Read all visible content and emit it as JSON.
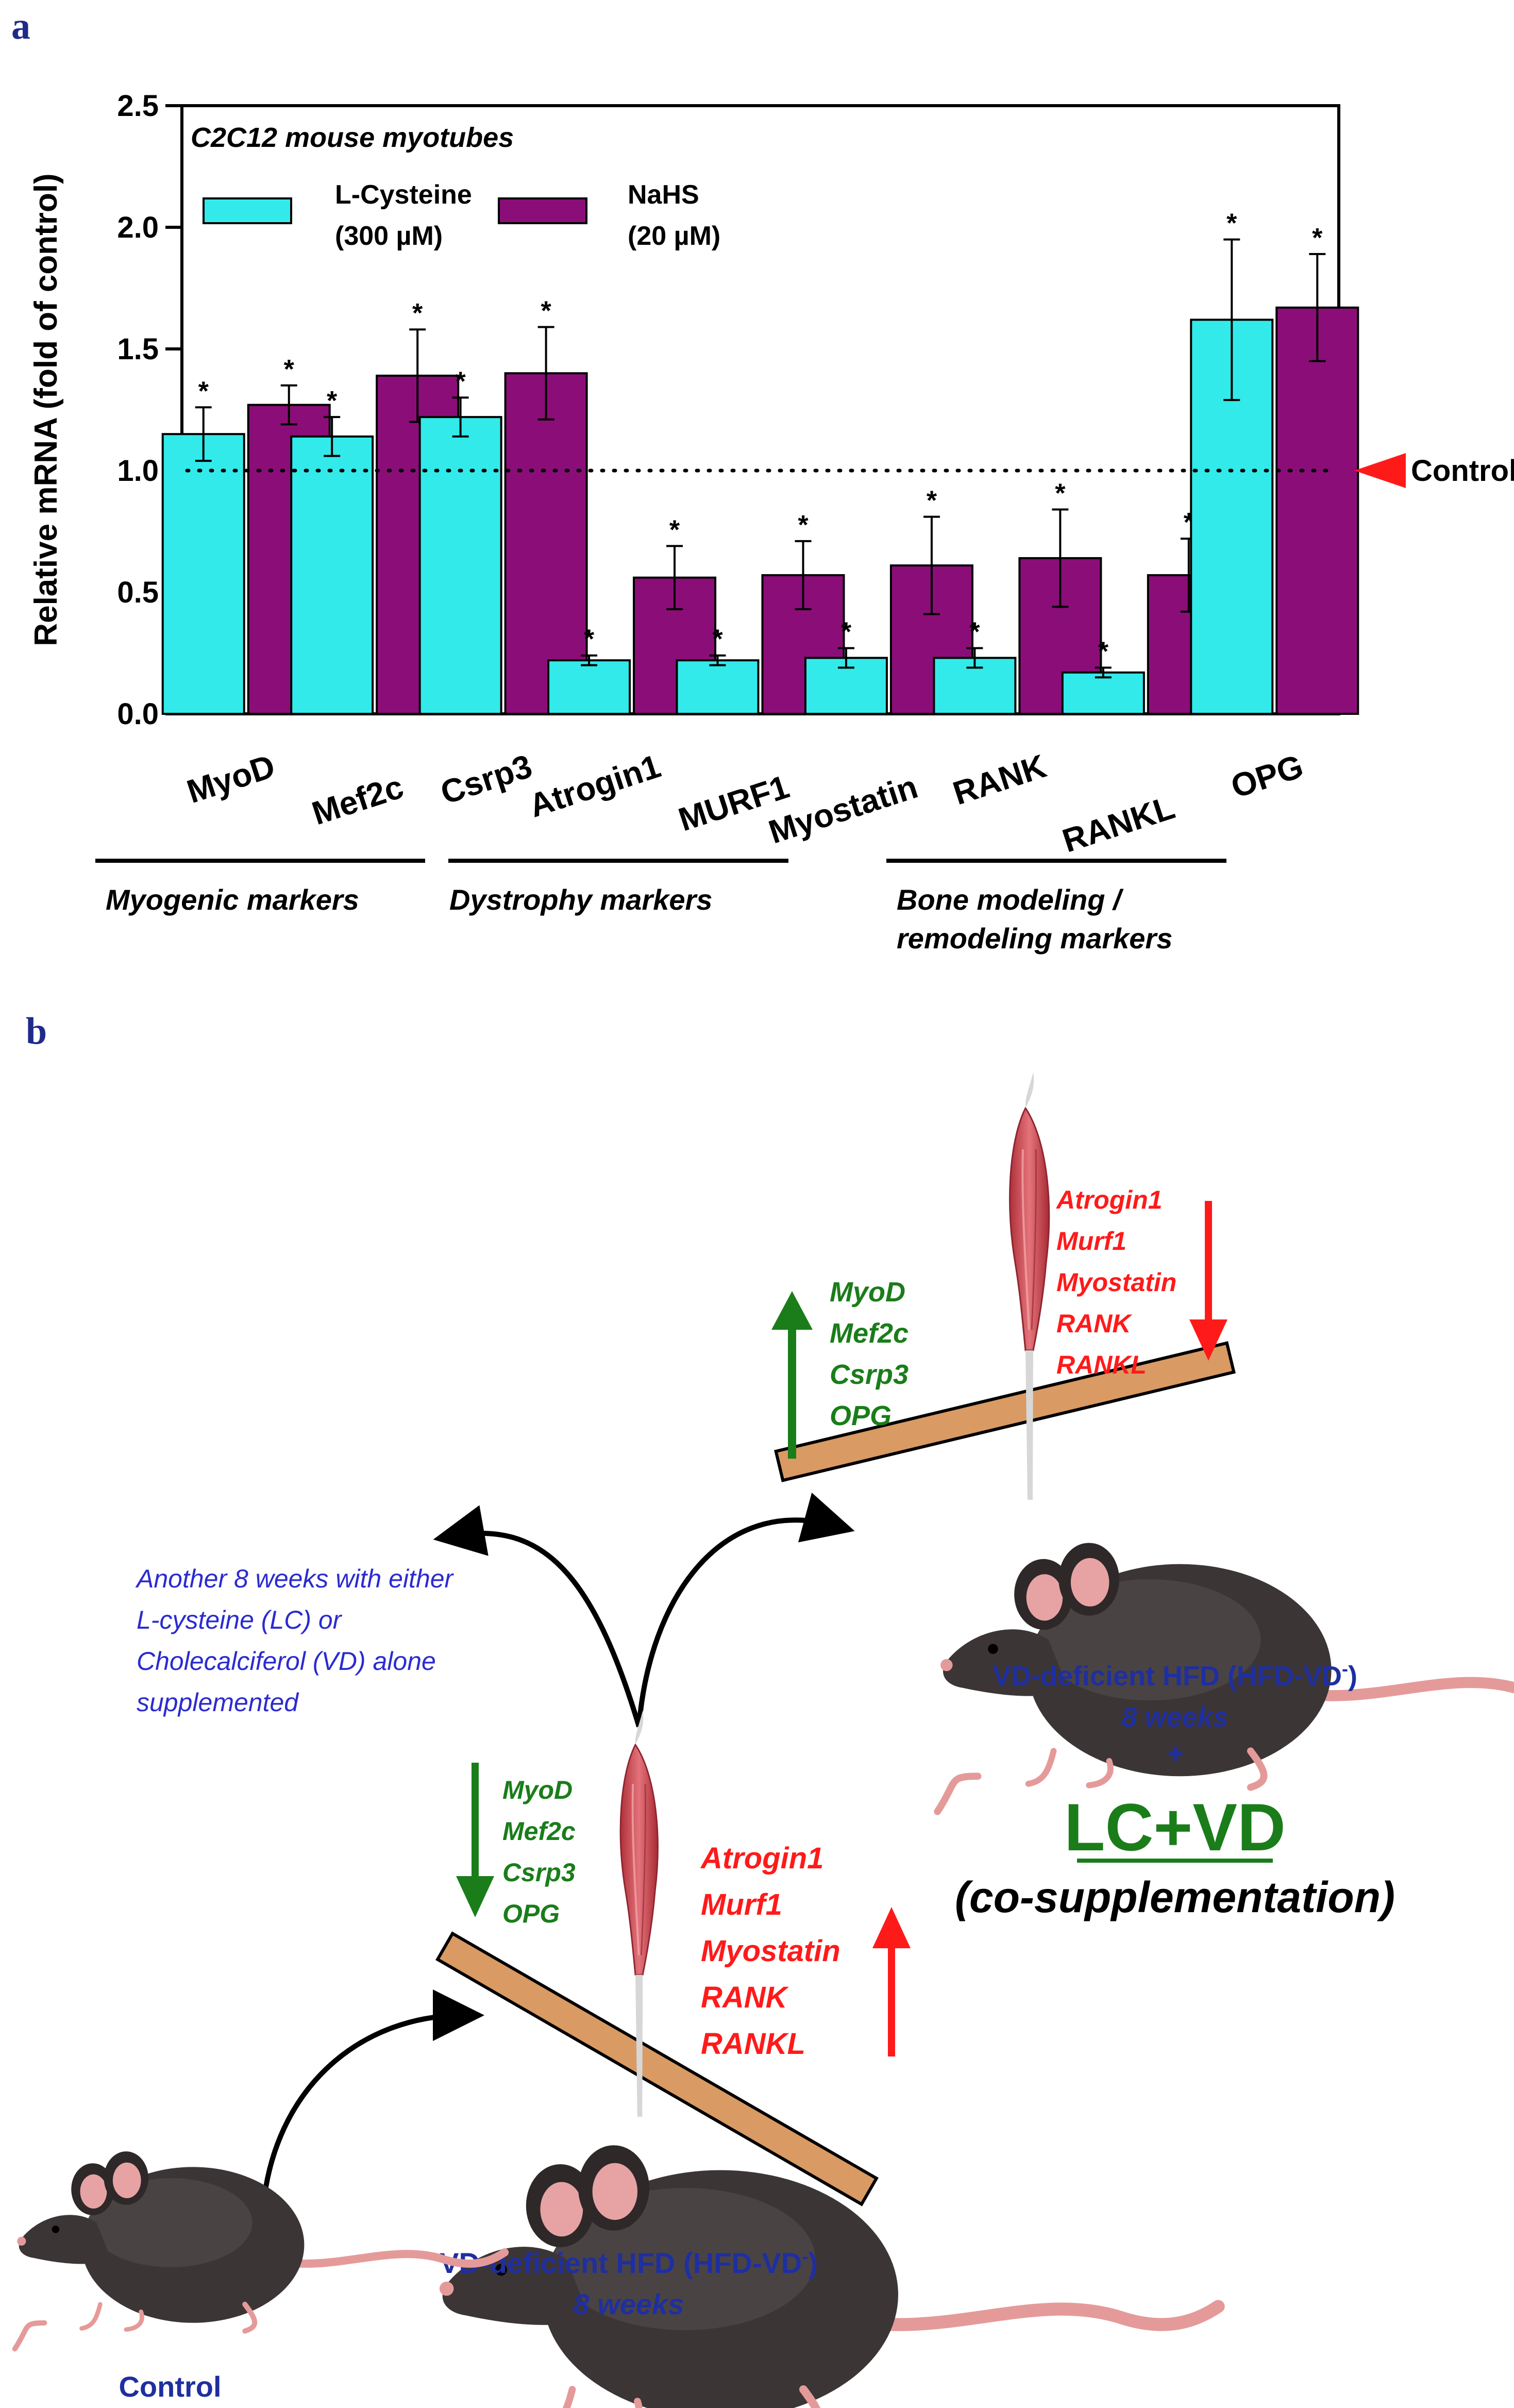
{
  "panel_a": {
    "label": "a",
    "subtitle": "C2C12 mouse myotubes",
    "legend": [
      {
        "name": "L-Cysteine",
        "dose": "(300 µM)",
        "color": "#33eaea"
      },
      {
        "name": "NaHS",
        "dose": "(20 µM)",
        "color": "#8b0e78"
      }
    ],
    "control_label": "Control",
    "significance_mark": "*",
    "groups": [
      "Myogenic markers",
      "Dystrophy markers",
      "Bone modeling /",
      "remodeling markers"
    ]
  },
  "chart_data": {
    "type": "bar",
    "title": "C2C12 mouse myotubes",
    "xlabel": "",
    "ylabel": "Relative mRNA (fold of control)",
    "ylim": [
      0,
      2.5
    ],
    "yticks": [
      "0.0",
      "0.5",
      "1.0",
      "1.5",
      "2.0",
      "2.5"
    ],
    "categories": [
      "MyoD",
      "Mef2c",
      "Csrp3",
      "Atrogin1",
      "MURF1",
      "Myostatin",
      "RANK",
      "RANKL",
      "OPG"
    ],
    "reference_line": 1.0,
    "series": [
      {
        "name": "L-Cysteine (300 µM)",
        "color": "#33eaea",
        "values": [
          1.15,
          1.14,
          1.22,
          0.22,
          0.22,
          0.23,
          0.23,
          0.17,
          1.62
        ],
        "errors": [
          0.11,
          0.08,
          0.08,
          0.02,
          0.02,
          0.04,
          0.04,
          0.02,
          0.33
        ]
      },
      {
        "name": "NaHS (20 µM)",
        "color": "#8b0e78",
        "values": [
          1.27,
          1.39,
          1.4,
          0.56,
          0.57,
          0.61,
          0.64,
          0.57,
          1.67
        ],
        "errors": [
          0.08,
          0.19,
          0.19,
          0.13,
          0.14,
          0.2,
          0.2,
          0.15,
          0.22
        ]
      }
    ]
  },
  "panel_b": {
    "label": "b",
    "up_green_markers": [
      "MyoD",
      "Mef2c",
      "Csrp3",
      "OPG"
    ],
    "down_red_markers": [
      "Atrogin1",
      "Murf1",
      "Myostatin",
      "RANK",
      "RANKL"
    ],
    "down_green_markers": [
      "MyoD",
      "Mef2c",
      "Csrp3",
      "OPG"
    ],
    "up_red_markers": [
      "Atrogin1",
      "Murf1",
      "Myostatin",
      "RANK",
      "RANKL"
    ],
    "note_lines": [
      "Another 8 weeks with either",
      "L-cysteine (LC) or",
      "Cholecalciferol (VD) alone",
      "supplemented"
    ],
    "top_mouse_label": "VD-deficient HFD (HFD-VD",
    "top_mouse_duration": "8 weeks",
    "plus": "+",
    "lcvd": "LC+VD",
    "cosupp": "(co-supplementation)",
    "bottom_mouse_label": "VD-deficient HFD (HFD-VD",
    "bottom_mouse_duration": "8 weeks",
    "superscript": "-",
    "close_paren": ")",
    "control_mouse_label": "Control"
  }
}
